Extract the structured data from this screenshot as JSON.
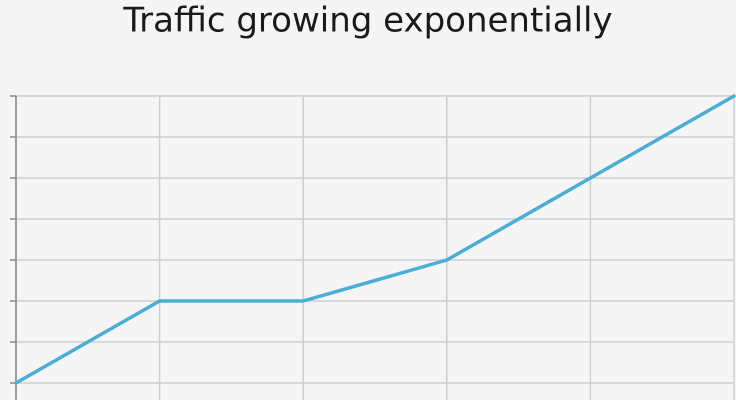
{
  "chart_data": {
    "type": "line",
    "title": "Traffic growing exponentially",
    "categories": [
      null,
      null,
      null,
      null,
      null,
      null
    ],
    "values": [
      0,
      2,
      2,
      3,
      5,
      7
    ],
    "color": "#4aaed5",
    "ylim": [
      0,
      7
    ],
    "yticks": [
      0,
      1,
      2,
      3,
      4,
      5,
      6,
      7
    ],
    "grid": true
  }
}
